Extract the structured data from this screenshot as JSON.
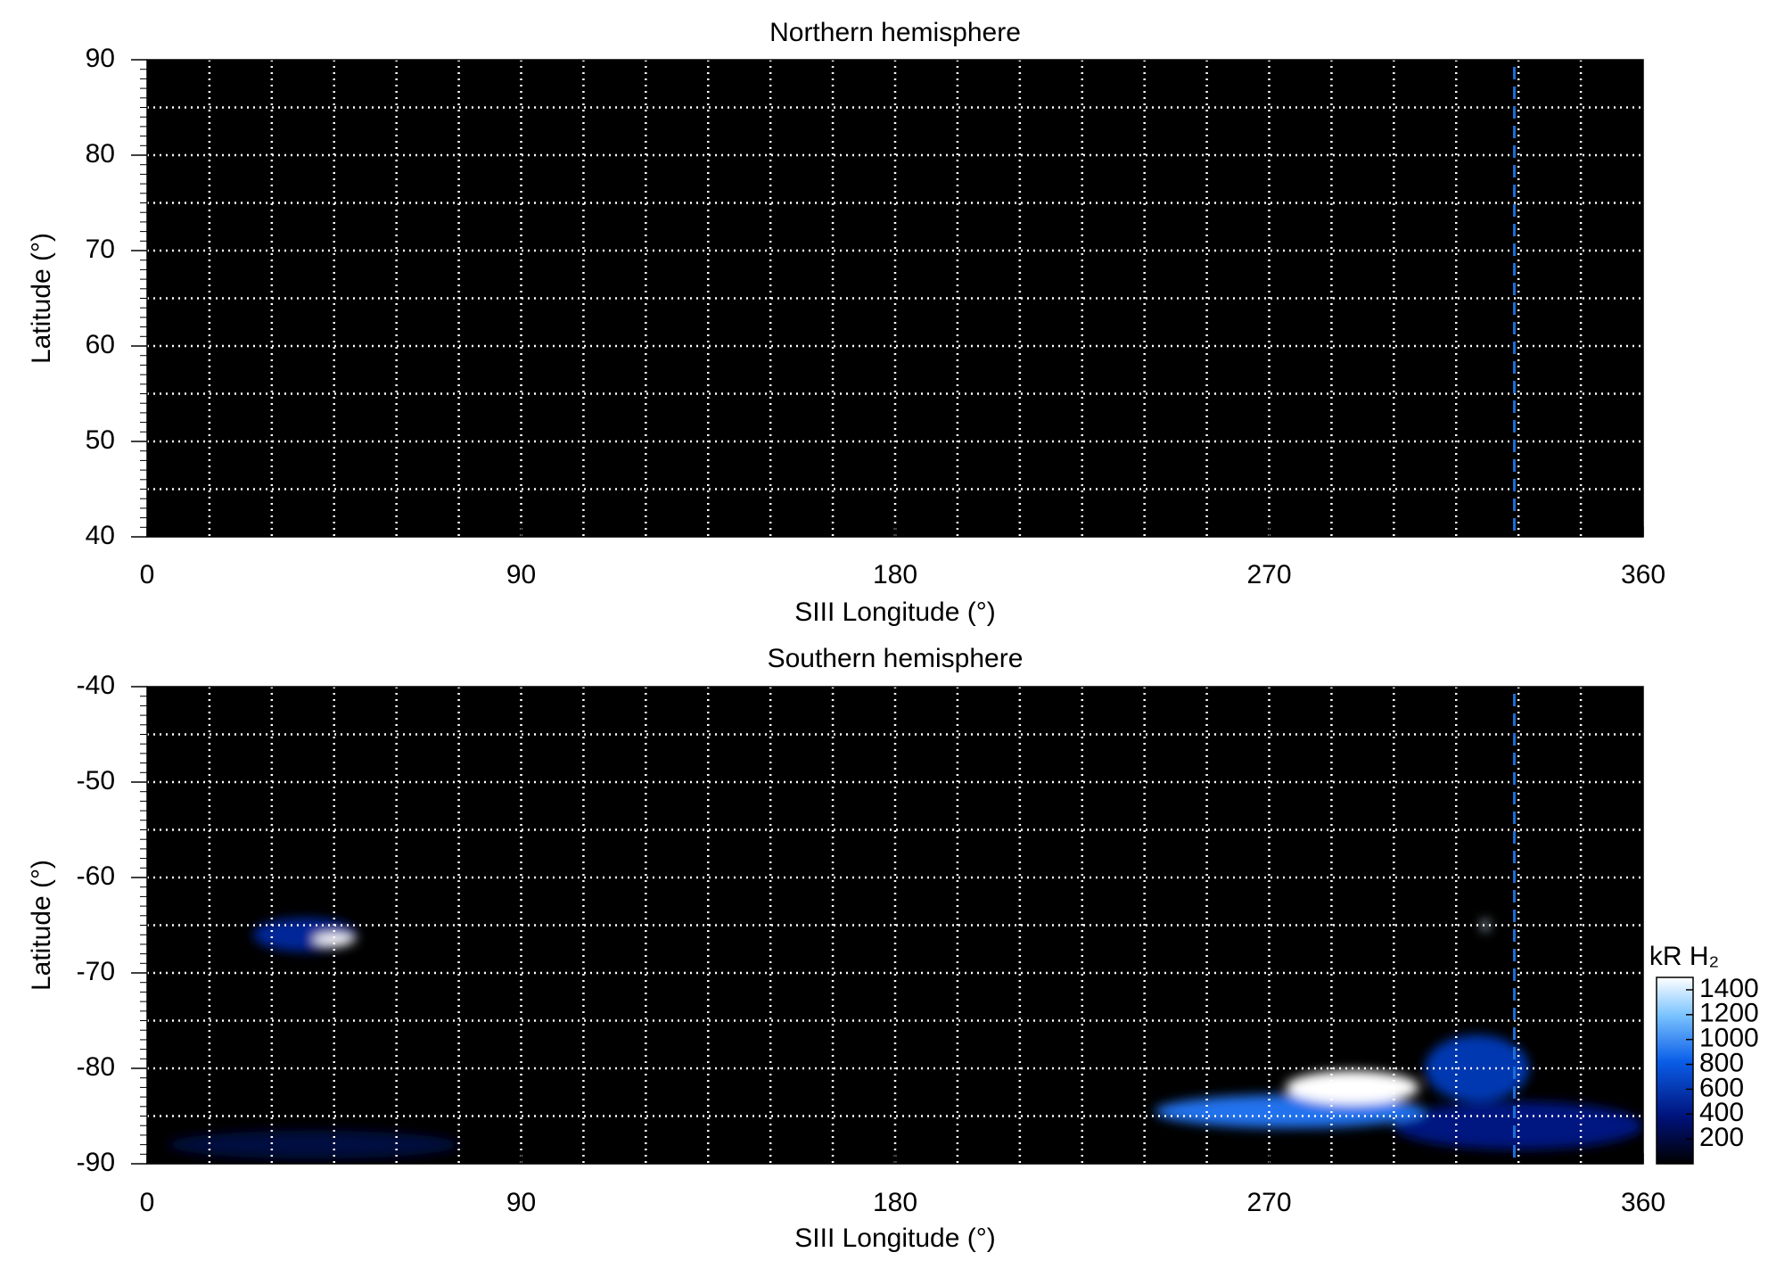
{
  "chart_data": [
    {
      "type": "map",
      "title": "Northern hemisphere",
      "xlabel": "SIII Longitude (°)",
      "ylabel": "Latitude (°)",
      "xlim": [
        0,
        360
      ],
      "ylim": [
        40,
        90
      ],
      "xticks": [
        0,
        90,
        180,
        270,
        360
      ],
      "yticks": [
        40,
        50,
        60,
        70,
        80,
        90
      ],
      "grid": true,
      "grid_x_step": 15,
      "grid_y_step": 5,
      "marker_lon": 329,
      "marker_color": "#1a6fd6",
      "blobs": []
    },
    {
      "type": "map",
      "title": "Southern hemisphere",
      "xlabel": "SIII Longitude (°)",
      "ylabel": "Latitude (°)",
      "xlim": [
        0,
        360
      ],
      "ylim": [
        -90,
        -40
      ],
      "xticks": [
        0,
        90,
        180,
        270,
        360
      ],
      "yticks": [
        -90,
        -80,
        -70,
        -60,
        -50,
        -40
      ],
      "grid": true,
      "grid_x_step": 15,
      "grid_y_step": 5,
      "marker_lon": 329,
      "marker_color": "#1a6fd6",
      "colorbar_label": "kR H₂",
      "clim": [
        0,
        1500
      ],
      "cticks": [
        200,
        400,
        600,
        800,
        1000,
        1200,
        1400
      ],
      "blobs": [
        {
          "lon": 40,
          "lat": -88,
          "dlon": 70,
          "dlat": 3,
          "value": 200
        },
        {
          "lon": 38,
          "lat": -66,
          "dlon": 25,
          "dlat": 3.5,
          "value": 500
        },
        {
          "lon": 45,
          "lat": -66.5,
          "dlon": 10,
          "dlat": 1.2,
          "value": 1500
        },
        {
          "lon": 330,
          "lat": -86,
          "dlon": 60,
          "dlat": 5,
          "value": 400
        },
        {
          "lon": 320,
          "lat": -80,
          "dlon": 25,
          "dlat": 7,
          "value": 600
        },
        {
          "lon": 275,
          "lat": -84.5,
          "dlon": 65,
          "dlat": 3.5,
          "value": 900
        },
        {
          "lon": 290,
          "lat": -82,
          "dlon": 32,
          "dlat": 3.5,
          "value": 1500
        },
        {
          "lon": 322,
          "lat": -65,
          "dlon": 1.5,
          "dlat": 1.2,
          "value": 1400
        }
      ]
    }
  ]
}
